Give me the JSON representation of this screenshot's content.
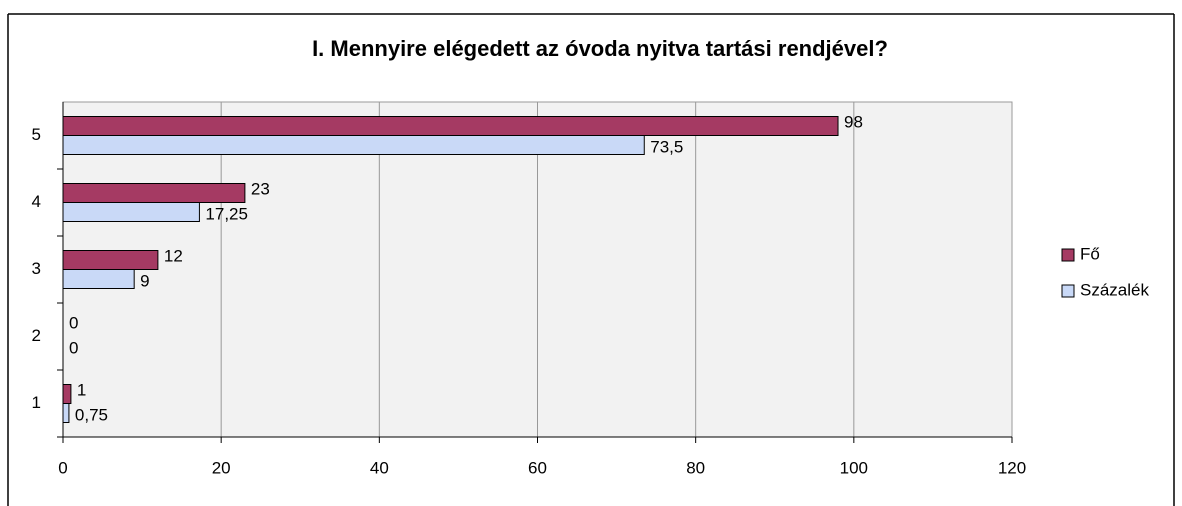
{
  "chart_data": {
    "type": "barh",
    "title": "I. Mennyire elégedett az óvoda nyitva tartási rendjével?",
    "categories": [
      "1",
      "2",
      "3",
      "4",
      "5"
    ],
    "series": [
      {
        "name": "Fő",
        "color": "#a53a63",
        "values": [
          1,
          0,
          12,
          23,
          98
        ]
      },
      {
        "name": "Százalék",
        "color": "#c9d9f7",
        "values": [
          0.75,
          0,
          9,
          17.25,
          73.5
        ],
        "value_labels": [
          "0,75",
          "0",
          "9",
          "17,25",
          "73,5"
        ]
      }
    ],
    "xlim": [
      0,
      120
    ],
    "xticks": [
      0,
      20,
      40,
      60,
      80,
      100,
      120
    ],
    "grid": true,
    "legend": "right"
  }
}
